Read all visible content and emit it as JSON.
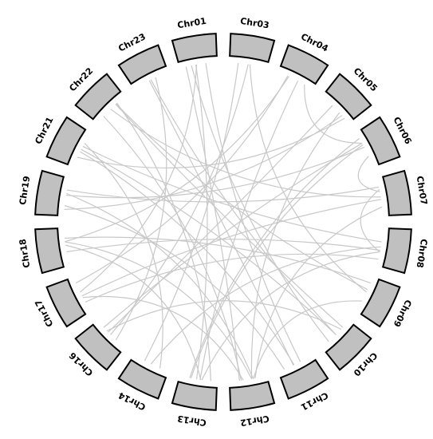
{
  "diagram": {
    "type": "circos",
    "chromosomes": [
      {
        "id": "Chr01",
        "label": "Chr01"
      },
      {
        "id": "Chr03",
        "label": "Chr03"
      },
      {
        "id": "Chr04",
        "label": "Chr04"
      },
      {
        "id": "Chr05",
        "label": "Chr05"
      },
      {
        "id": "Chr06",
        "label": "Chr06"
      },
      {
        "id": "Chr07",
        "label": "Chr07"
      },
      {
        "id": "Chr08",
        "label": "Chr08"
      },
      {
        "id": "Chr09",
        "label": "Chr09"
      },
      {
        "id": "Chr10",
        "label": "Chr10"
      },
      {
        "id": "Chr11",
        "label": "Chr11"
      },
      {
        "id": "Chr12",
        "label": "Chr12"
      },
      {
        "id": "Chr13",
        "label": "Chr13"
      },
      {
        "id": "Chr14",
        "label": "Chr14"
      },
      {
        "id": "Chr16",
        "label": "Chr16"
      },
      {
        "id": "Chr17",
        "label": "Chr17"
      },
      {
        "id": "Chr18",
        "label": "Chr18"
      },
      {
        "id": "Chr19",
        "label": "Chr19"
      },
      {
        "id": "Chr21",
        "label": "Chr21"
      },
      {
        "id": "Chr22",
        "label": "Chr22"
      },
      {
        "id": "Chr23",
        "label": "Chr23"
      }
    ],
    "links": [
      [
        "Chr01",
        "Chr12"
      ],
      [
        "Chr01",
        "Chr13"
      ],
      [
        "Chr01",
        "Chr11"
      ],
      [
        "Chr03",
        "Chr14"
      ],
      [
        "Chr03",
        "Chr16"
      ],
      [
        "Chr04",
        "Chr06"
      ],
      [
        "Chr04",
        "Chr18"
      ],
      [
        "Chr04",
        "Chr13"
      ],
      [
        "Chr05",
        "Chr21"
      ],
      [
        "Chr05",
        "Chr16"
      ],
      [
        "Chr05",
        "Chr12"
      ],
      [
        "Chr06",
        "Chr13"
      ],
      [
        "Chr06",
        "Chr19"
      ],
      [
        "Chr06",
        "Chr07"
      ],
      [
        "Chr07",
        "Chr19"
      ],
      [
        "Chr07",
        "Chr22"
      ],
      [
        "Chr07",
        "Chr12"
      ],
      [
        "Chr07",
        "Chr08"
      ],
      [
        "Chr07",
        "Chr17"
      ],
      [
        "Chr08",
        "Chr17"
      ],
      [
        "Chr08",
        "Chr21"
      ],
      [
        "Chr08",
        "Chr13"
      ],
      [
        "Chr09",
        "Chr18"
      ],
      [
        "Chr09",
        "Chr03"
      ],
      [
        "Chr09",
        "Chr12"
      ],
      [
        "Chr10",
        "Chr22"
      ],
      [
        "Chr10",
        "Chr21"
      ],
      [
        "Chr10",
        "Chr01"
      ],
      [
        "Chr10",
        "Chr16"
      ],
      [
        "Chr11",
        "Chr23"
      ],
      [
        "Chr11",
        "Chr19"
      ],
      [
        "Chr12",
        "Chr19"
      ],
      [
        "Chr12",
        "Chr17"
      ],
      [
        "Chr13",
        "Chr22"
      ],
      [
        "Chr13",
        "Chr18"
      ],
      [
        "Chr13",
        "Chr06"
      ],
      [
        "Chr14",
        "Chr21"
      ],
      [
        "Chr14",
        "Chr08"
      ],
      [
        "Chr16",
        "Chr06"
      ],
      [
        "Chr16",
        "Chr23"
      ],
      [
        "Chr17",
        "Chr01"
      ],
      [
        "Chr17",
        "Chr04"
      ],
      [
        "Chr18",
        "Chr08"
      ],
      [
        "Chr18",
        "Chr12"
      ],
      [
        "Chr19",
        "Chr05"
      ],
      [
        "Chr21",
        "Chr11"
      ],
      [
        "Chr22",
        "Chr09"
      ],
      [
        "Chr22",
        "Chr12"
      ],
      [
        "Chr23",
        "Chr10"
      ]
    ],
    "colors": {
      "block_fill": "#c0c0c0",
      "block_stroke": "#000000",
      "link": "#c8c8c8",
      "label": "#000000"
    }
  }
}
